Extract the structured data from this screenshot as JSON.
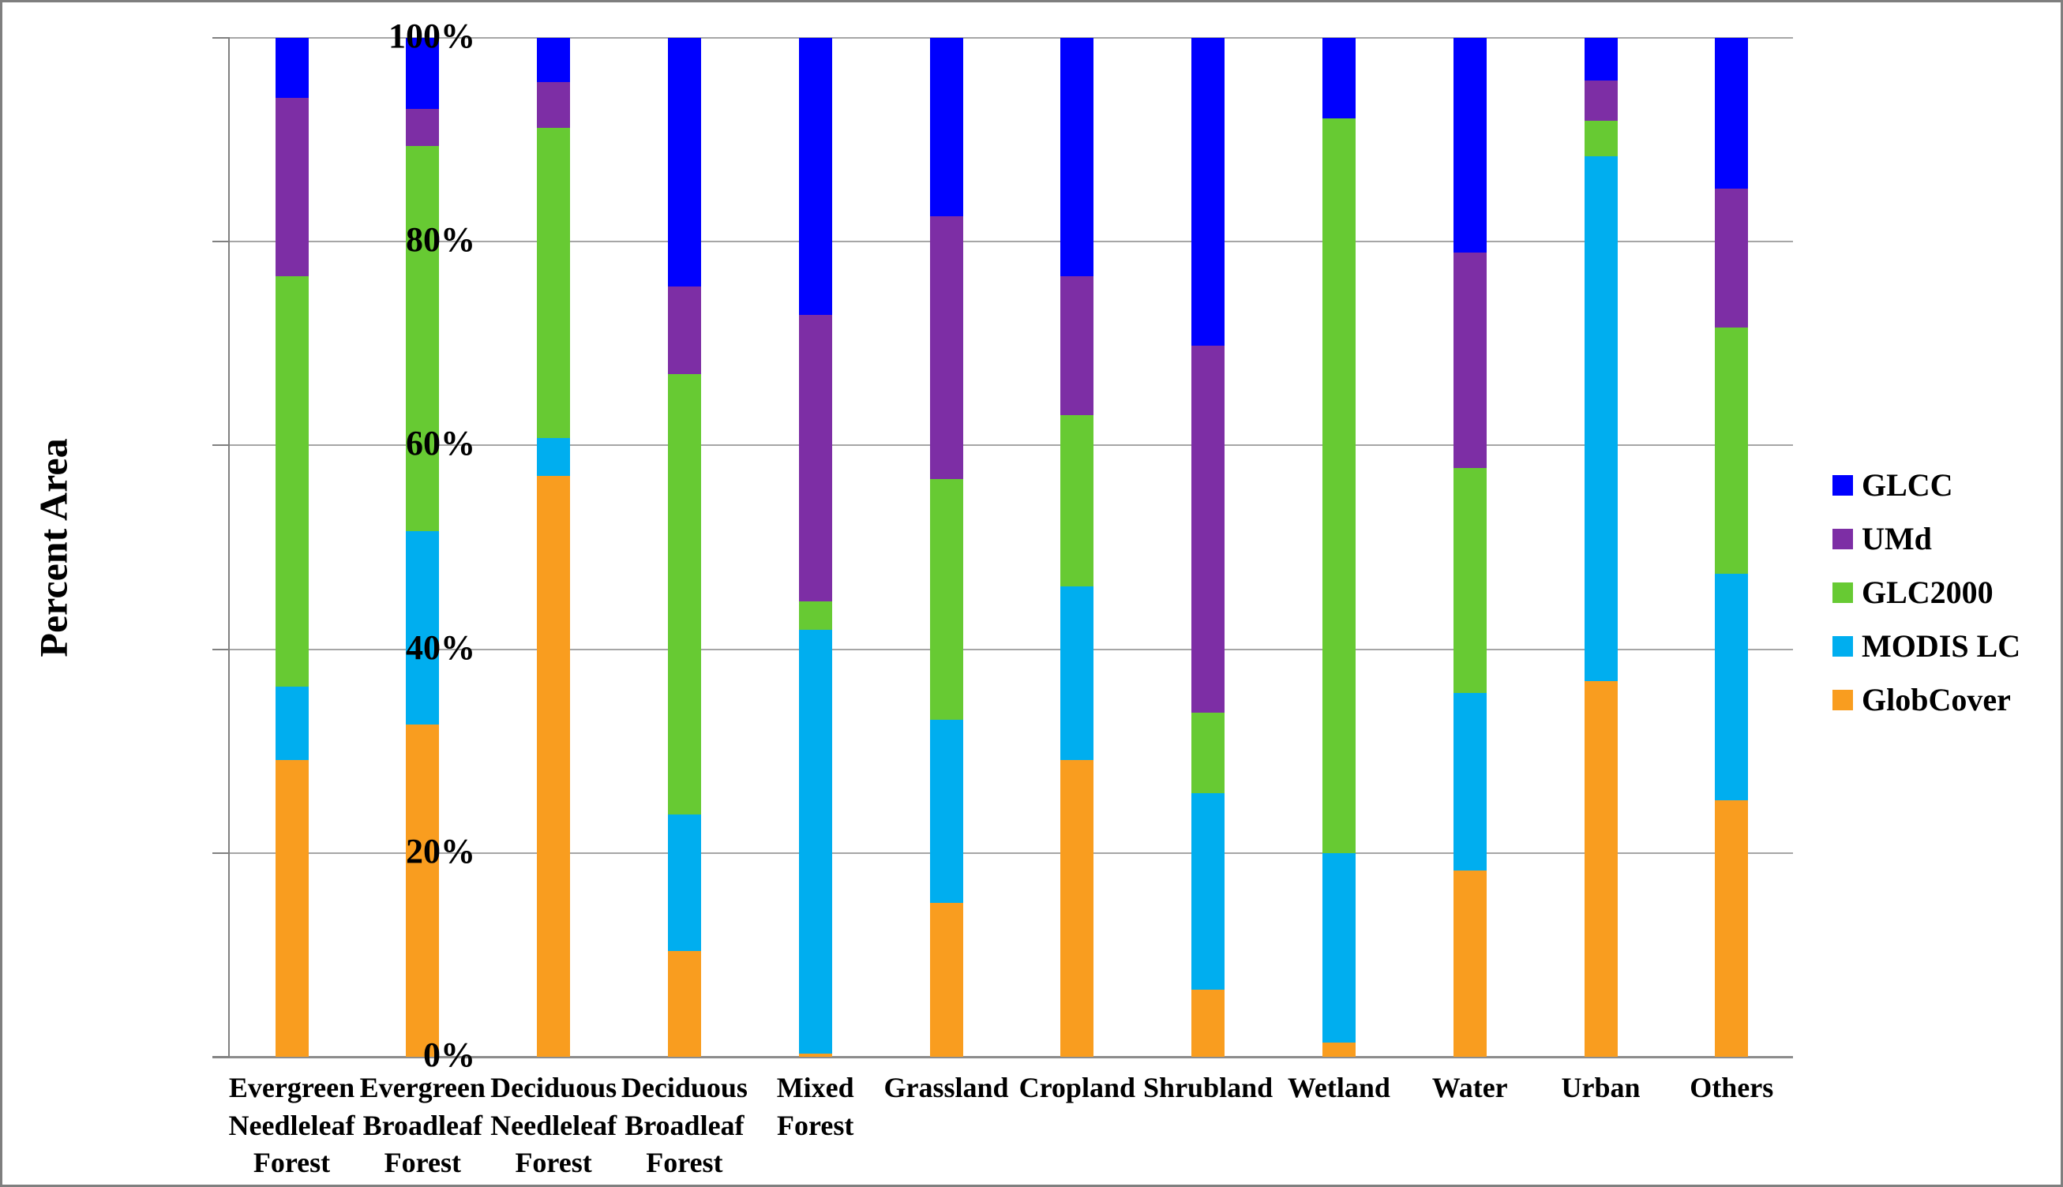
{
  "figure": {
    "background": "#ffffff",
    "border_color": "#7f7f7f",
    "gridline_color": "#a6a6a6",
    "axis_color": "#808080"
  },
  "chart_data": {
    "type": "bar",
    "stacked": true,
    "units": "percent",
    "title": "",
    "xlabel": "",
    "ylabel": "Percent Area",
    "ylim": [
      0,
      100
    ],
    "ytick_interval": 20,
    "ytick_labels": [
      "0%",
      "20%",
      "40%",
      "60%",
      "80%",
      "100%"
    ],
    "grid": "horizontal",
    "legend_position": "right",
    "legend_order_top_to_bottom": [
      "GLCC",
      "UMd",
      "GLC2000",
      "MODIS LC",
      "GlobCover"
    ],
    "categories": [
      "Evergreen Needleleaf Forest",
      "Evergreen Broadleaf Forest",
      "Deciduous Needleleaf Forest",
      "Deciduous Broadleaf Forest",
      "Mixed Forest",
      "Grassland",
      "Cropland",
      "Shrubland",
      "Wetland",
      "Water",
      "Urban",
      "Others"
    ],
    "series": [
      {
        "name": "GlobCover",
        "color": "#f99d1f",
        "values": [
          29.1,
          32.6,
          57.0,
          10.4,
          0.3,
          15.1,
          29.1,
          6.6,
          1.4,
          18.3,
          36.9,
          25.2
        ]
      },
      {
        "name": "MODIS LC",
        "color": "#00aeef",
        "values": [
          7.2,
          19.0,
          3.7,
          13.4,
          41.6,
          18.0,
          17.1,
          19.3,
          18.6,
          17.4,
          51.5,
          22.2
        ]
      },
      {
        "name": "GLC2000",
        "color": "#67ca33",
        "values": [
          40.3,
          37.8,
          30.5,
          43.2,
          2.8,
          23.6,
          16.8,
          7.9,
          72.1,
          22.1,
          3.5,
          24.2
        ]
      },
      {
        "name": "UMd",
        "color": "#7d2ea5",
        "values": [
          17.5,
          3.6,
          4.5,
          8.6,
          28.1,
          25.8,
          13.6,
          36.0,
          0.0,
          21.1,
          3.9,
          13.6
        ]
      },
      {
        "name": "GLCC",
        "color": "#0000fe",
        "values": [
          5.9,
          7.0,
          4.3,
          24.4,
          27.2,
          17.5,
          23.4,
          30.2,
          7.9,
          21.1,
          4.2,
          14.8
        ]
      }
    ],
    "series_note": "series listed bottom-to-top of each stacked bar"
  }
}
